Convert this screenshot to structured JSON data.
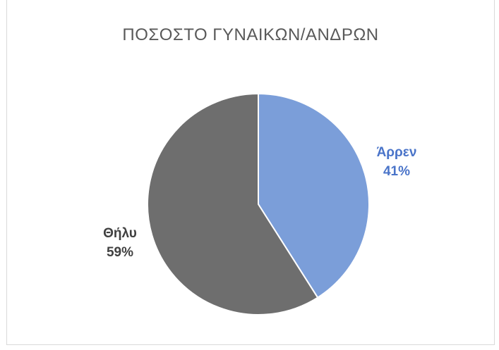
{
  "chart_data": {
    "type": "pie",
    "title": "ΠΟΣΟΣΤΟ ΓΥΝΑΙΚΩΝ/ΑΝΔΡΩΝ",
    "slices": [
      {
        "category": "Άρρεν",
        "value": 41,
        "value_label": "41%",
        "color": "#7b9ed9",
        "label_color": "#4a74c9"
      },
      {
        "category": "Θήλυ",
        "value": 59,
        "value_label": "59%",
        "color": "#6e6e6e",
        "label_color": "#404040"
      }
    ],
    "legend": "none",
    "start_angle_deg": 0,
    "direction": "clockwise"
  }
}
